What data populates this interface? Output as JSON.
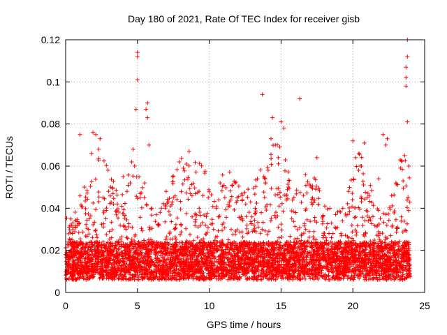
{
  "chart_data": {
    "type": "scatter",
    "title": "Day 180 of 2021, Rate Of TEC Index for receiver gisb",
    "xlabel": "GPS time / hours",
    "ylabel": "ROTI / TECUs",
    "xlim": [
      0,
      25
    ],
    "ylim": [
      0,
      0.12
    ],
    "xticks": [
      0,
      5,
      10,
      15,
      20,
      25
    ],
    "xtick_labels": [
      "0",
      "5",
      "10",
      "15",
      "20",
      "25"
    ],
    "yticks": [
      0,
      0.02,
      0.04,
      0.06,
      0.08,
      0.1,
      0.12
    ],
    "ytick_labels": [
      "0",
      "0.02",
      "0.04",
      "0.06",
      "0.08",
      "0.1",
      "0.12"
    ],
    "grid": true,
    "marker": "plus",
    "marker_color": "#ff0000",
    "series": [
      {
        "name": "ROTI",
        "color": "#ff0000",
        "points": [
          [
            0.1,
            0.012
          ],
          [
            0.3,
            0.025
          ],
          [
            0.5,
            0.031
          ],
          [
            0.8,
            0.02
          ],
          [
            1.0,
            0.046
          ],
          [
            1.0,
            0.075
          ],
          [
            1.3,
            0.05
          ],
          [
            1.6,
            0.03
          ],
          [
            1.8,
            0.066
          ],
          [
            1.9,
            0.076
          ],
          [
            2.1,
            0.075
          ],
          [
            2.3,
            0.068
          ],
          [
            2.4,
            0.073
          ],
          [
            2.6,
            0.045
          ],
          [
            2.8,
            0.035
          ],
          [
            3.2,
            0.026
          ],
          [
            3.6,
            0.042
          ],
          [
            4.0,
            0.055
          ],
          [
            4.2,
            0.03
          ],
          [
            4.5,
            0.052
          ],
          [
            4.6,
            0.062
          ],
          [
            4.7,
            0.068
          ],
          [
            4.8,
            0.06
          ],
          [
            4.9,
            0.087
          ],
          [
            5.0,
            0.101
          ],
          [
            5.0,
            0.112
          ],
          [
            5.0,
            0.114
          ],
          [
            5.2,
            0.045
          ],
          [
            5.5,
            0.052
          ],
          [
            5.6,
            0.087
          ],
          [
            5.7,
            0.09
          ],
          [
            5.7,
            0.083
          ],
          [
            5.8,
            0.07
          ],
          [
            6.0,
            0.04
          ],
          [
            6.5,
            0.032
          ],
          [
            7.0,
            0.048
          ],
          [
            7.5,
            0.045
          ],
          [
            7.9,
            0.062
          ],
          [
            8.2,
            0.059
          ],
          [
            8.4,
            0.061
          ],
          [
            8.6,
            0.067
          ],
          [
            8.8,
            0.046
          ],
          [
            9.3,
            0.04
          ],
          [
            9.8,
            0.036
          ],
          [
            10.5,
            0.04
          ],
          [
            11.0,
            0.033
          ],
          [
            11.4,
            0.043
          ],
          [
            11.8,
            0.052
          ],
          [
            12.3,
            0.046
          ],
          [
            12.7,
            0.049
          ],
          [
            13.2,
            0.04
          ],
          [
            13.7,
            0.094
          ],
          [
            13.8,
            0.055
          ],
          [
            14.1,
            0.058
          ],
          [
            14.3,
            0.073
          ],
          [
            14.4,
            0.083
          ],
          [
            14.6,
            0.07
          ],
          [
            14.8,
            0.064
          ],
          [
            15.0,
            0.081
          ],
          [
            15.2,
            0.078
          ],
          [
            15.3,
            0.063
          ],
          [
            15.5,
            0.05
          ],
          [
            15.9,
            0.045
          ],
          [
            16.3,
            0.092
          ],
          [
            16.7,
            0.056
          ],
          [
            17.1,
            0.05
          ],
          [
            17.5,
            0.064
          ],
          [
            17.9,
            0.036
          ],
          [
            18.4,
            0.04
          ],
          [
            18.8,
            0.037
          ],
          [
            19.3,
            0.04
          ],
          [
            19.7,
            0.048
          ],
          [
            20.0,
            0.072
          ],
          [
            20.2,
            0.064
          ],
          [
            20.4,
            0.058
          ],
          [
            20.6,
            0.06
          ],
          [
            20.8,
            0.071
          ],
          [
            21.0,
            0.045
          ],
          [
            21.4,
            0.036
          ],
          [
            21.8,
            0.054
          ],
          [
            22.1,
            0.075
          ],
          [
            22.3,
            0.07
          ],
          [
            22.4,
            0.073
          ],
          [
            22.7,
            0.046
          ],
          [
            23.0,
            0.052
          ],
          [
            23.3,
            0.063
          ],
          [
            23.5,
            0.053
          ],
          [
            23.6,
            0.065
          ],
          [
            23.7,
            0.098
          ],
          [
            23.7,
            0.102
          ],
          [
            23.7,
            0.107
          ],
          [
            23.8,
            0.112
          ],
          [
            23.8,
            0.12
          ],
          [
            23.8,
            0.081
          ],
          [
            23.9,
            0.06
          ]
        ]
      }
    ]
  }
}
